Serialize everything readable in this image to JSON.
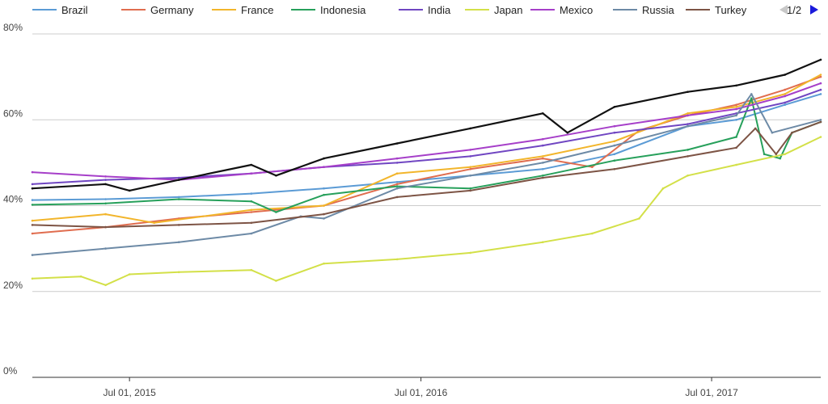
{
  "chart_data": {
    "type": "line",
    "title": "",
    "xlabel": "",
    "ylabel": "",
    "ylim": [
      0,
      80
    ],
    "y_ticks": [
      0,
      20,
      40,
      60,
      80
    ],
    "y_tick_labels": [
      "0%",
      "20%",
      "40%",
      "60%",
      "80%"
    ],
    "x_range": [
      "2015-03-01",
      "2017-11-15"
    ],
    "x_ticks": [
      "2015-07-01",
      "2016-07-01",
      "2017-07-01"
    ],
    "x_tick_labels": [
      "Jul 01, 2015",
      "Jul 01, 2016",
      "Jul 01, 2017"
    ],
    "grid": true,
    "legend": {
      "placement": "top",
      "page_label": "1/2",
      "prev_icon": "triangle-left-icon",
      "next_icon": "triangle-right-icon"
    },
    "series": [
      {
        "name": "Brazil",
        "color": "#5b9bd5",
        "points": [
          [
            "2015-03-01",
            41.3
          ],
          [
            "2015-06-01",
            41.5
          ],
          [
            "2015-09-01",
            42.0
          ],
          [
            "2015-12-01",
            42.8
          ],
          [
            "2016-03-01",
            44.0
          ],
          [
            "2016-06-01",
            45.5
          ],
          [
            "2016-09-01",
            47.0
          ],
          [
            "2016-12-01",
            48.5
          ],
          [
            "2017-03-01",
            52.0
          ],
          [
            "2017-06-01",
            58.5
          ],
          [
            "2017-08-01",
            60.0
          ],
          [
            "2017-10-01",
            63.5
          ],
          [
            "2017-11-15",
            66.0
          ]
        ]
      },
      {
        "name": "Germany",
        "color": "#e06d4f",
        "points": [
          [
            "2015-03-01",
            33.5
          ],
          [
            "2015-06-01",
            35.0
          ],
          [
            "2015-09-01",
            37.0
          ],
          [
            "2015-12-01",
            38.5
          ],
          [
            "2016-03-01",
            40.0
          ],
          [
            "2016-06-01",
            45.0
          ],
          [
            "2016-09-01",
            48.5
          ],
          [
            "2016-12-01",
            51.0
          ],
          [
            "2017-02-01",
            49.0
          ],
          [
            "2017-04-01",
            57.5
          ],
          [
            "2017-06-01",
            61.0
          ],
          [
            "2017-08-01",
            63.5
          ],
          [
            "2017-10-01",
            67.0
          ],
          [
            "2017-11-15",
            70.0
          ]
        ]
      },
      {
        "name": "France",
        "color": "#f2b52b",
        "points": [
          [
            "2015-03-01",
            36.5
          ],
          [
            "2015-06-01",
            38.0
          ],
          [
            "2015-08-01",
            36.0
          ],
          [
            "2015-12-01",
            39.0
          ],
          [
            "2016-03-01",
            40.0
          ],
          [
            "2016-06-01",
            47.5
          ],
          [
            "2016-09-01",
            49.0
          ],
          [
            "2016-12-01",
            51.5
          ],
          [
            "2017-03-01",
            55.0
          ],
          [
            "2017-06-01",
            61.5
          ],
          [
            "2017-08-01",
            63.0
          ],
          [
            "2017-10-01",
            66.0
          ],
          [
            "2017-11-15",
            70.5
          ]
        ]
      },
      {
        "name": "Indonesia",
        "color": "#27a05b",
        "points": [
          [
            "2015-03-01",
            40.2
          ],
          [
            "2015-06-01",
            40.5
          ],
          [
            "2015-09-01",
            41.5
          ],
          [
            "2015-12-01",
            41.0
          ],
          [
            "2016-01-01",
            38.5
          ],
          [
            "2016-03-01",
            42.5
          ],
          [
            "2016-06-01",
            44.5
          ],
          [
            "2016-09-01",
            44.0
          ],
          [
            "2016-12-01",
            47.0
          ],
          [
            "2017-03-01",
            50.5
          ],
          [
            "2017-06-01",
            53.0
          ],
          [
            "2017-08-01",
            56.0
          ],
          [
            "2017-08-20",
            65.0
          ],
          [
            "2017-09-05",
            52.0
          ],
          [
            "2017-09-25",
            51.0
          ],
          [
            "2017-10-10",
            57.0
          ],
          [
            "2017-11-15",
            59.5
          ]
        ]
      },
      {
        "name": "India",
        "color": "#7046c2",
        "points": [
          [
            "2015-03-01",
            45.0
          ],
          [
            "2015-06-01",
            46.0
          ],
          [
            "2015-09-01",
            46.5
          ],
          [
            "2015-12-01",
            47.5
          ],
          [
            "2016-03-01",
            49.0
          ],
          [
            "2016-06-01",
            50.0
          ],
          [
            "2016-09-01",
            51.5
          ],
          [
            "2016-12-01",
            54.0
          ],
          [
            "2017-03-01",
            57.0
          ],
          [
            "2017-06-01",
            59.0
          ],
          [
            "2017-08-01",
            61.5
          ],
          [
            "2017-10-01",
            64.0
          ],
          [
            "2017-11-15",
            67.0
          ]
        ]
      },
      {
        "name": "Japan",
        "color": "#d3e048",
        "points": [
          [
            "2015-03-01",
            23.0
          ],
          [
            "2015-05-01",
            23.5
          ],
          [
            "2015-06-01",
            21.5
          ],
          [
            "2015-07-01",
            24.0
          ],
          [
            "2015-09-01",
            24.5
          ],
          [
            "2015-12-01",
            25.0
          ],
          [
            "2016-01-01",
            22.5
          ],
          [
            "2016-03-01",
            26.5
          ],
          [
            "2016-06-01",
            27.5
          ],
          [
            "2016-09-01",
            29.0
          ],
          [
            "2016-12-01",
            31.5
          ],
          [
            "2017-02-01",
            33.5
          ],
          [
            "2017-04-01",
            37.0
          ],
          [
            "2017-05-01",
            44.0
          ],
          [
            "2017-06-01",
            47.0
          ],
          [
            "2017-08-01",
            49.5
          ],
          [
            "2017-10-01",
            52.0
          ],
          [
            "2017-11-15",
            56.0
          ]
        ]
      },
      {
        "name": "Mexico",
        "color": "#a63fc9",
        "points": [
          [
            "2015-03-01",
            47.8
          ],
          [
            "2015-06-01",
            46.8
          ],
          [
            "2015-09-01",
            46.0
          ],
          [
            "2015-12-01",
            47.5
          ],
          [
            "2016-03-01",
            49.0
          ],
          [
            "2016-06-01",
            51.0
          ],
          [
            "2016-09-01",
            53.0
          ],
          [
            "2016-12-01",
            55.5
          ],
          [
            "2017-03-01",
            58.5
          ],
          [
            "2017-06-01",
            61.0
          ],
          [
            "2017-08-01",
            62.5
          ],
          [
            "2017-10-01",
            65.5
          ],
          [
            "2017-11-15",
            68.5
          ]
        ]
      },
      {
        "name": "Russia",
        "color": "#6d8aa6",
        "points": [
          [
            "2015-03-01",
            28.5
          ],
          [
            "2015-06-01",
            30.0
          ],
          [
            "2015-09-01",
            31.5
          ],
          [
            "2015-12-01",
            33.5
          ],
          [
            "2016-02-01",
            37.5
          ],
          [
            "2016-03-01",
            37.0
          ],
          [
            "2016-06-01",
            44.0
          ],
          [
            "2016-09-01",
            47.0
          ],
          [
            "2016-12-01",
            50.0
          ],
          [
            "2017-03-01",
            54.0
          ],
          [
            "2017-06-01",
            58.5
          ],
          [
            "2017-08-01",
            61.0
          ],
          [
            "2017-08-20",
            66.0
          ],
          [
            "2017-09-15",
            57.0
          ],
          [
            "2017-11-15",
            60.0
          ]
        ]
      },
      {
        "name": "Turkey",
        "color": "#7d5445",
        "points": [
          [
            "2015-03-01",
            35.5
          ],
          [
            "2015-06-01",
            35.0
          ],
          [
            "2015-09-01",
            35.5
          ],
          [
            "2015-12-01",
            36.0
          ],
          [
            "2016-03-01",
            38.0
          ],
          [
            "2016-06-01",
            42.0
          ],
          [
            "2016-09-01",
            43.5
          ],
          [
            "2016-12-01",
            46.5
          ],
          [
            "2017-03-01",
            48.5
          ],
          [
            "2017-06-01",
            51.5
          ],
          [
            "2017-08-01",
            53.5
          ],
          [
            "2017-08-25",
            58.0
          ],
          [
            "2017-09-20",
            52.0
          ],
          [
            "2017-10-10",
            57.0
          ],
          [
            "2017-11-15",
            59.5
          ]
        ]
      },
      {
        "name": "",
        "color": "#111111",
        "points": [
          [
            "2015-03-01",
            44.0
          ],
          [
            "2015-06-01",
            45.0
          ],
          [
            "2015-07-01",
            43.5
          ],
          [
            "2015-09-01",
            46.0
          ],
          [
            "2015-12-01",
            49.5
          ],
          [
            "2016-01-01",
            47.0
          ],
          [
            "2016-03-01",
            51.0
          ],
          [
            "2016-06-01",
            54.5
          ],
          [
            "2016-09-01",
            58.0
          ],
          [
            "2016-12-01",
            61.5
          ],
          [
            "2017-01-01",
            57.0
          ],
          [
            "2017-03-01",
            63.0
          ],
          [
            "2017-06-01",
            66.5
          ],
          [
            "2017-08-01",
            68.0
          ],
          [
            "2017-10-01",
            70.5
          ],
          [
            "2017-11-15",
            74.0
          ]
        ]
      }
    ]
  }
}
